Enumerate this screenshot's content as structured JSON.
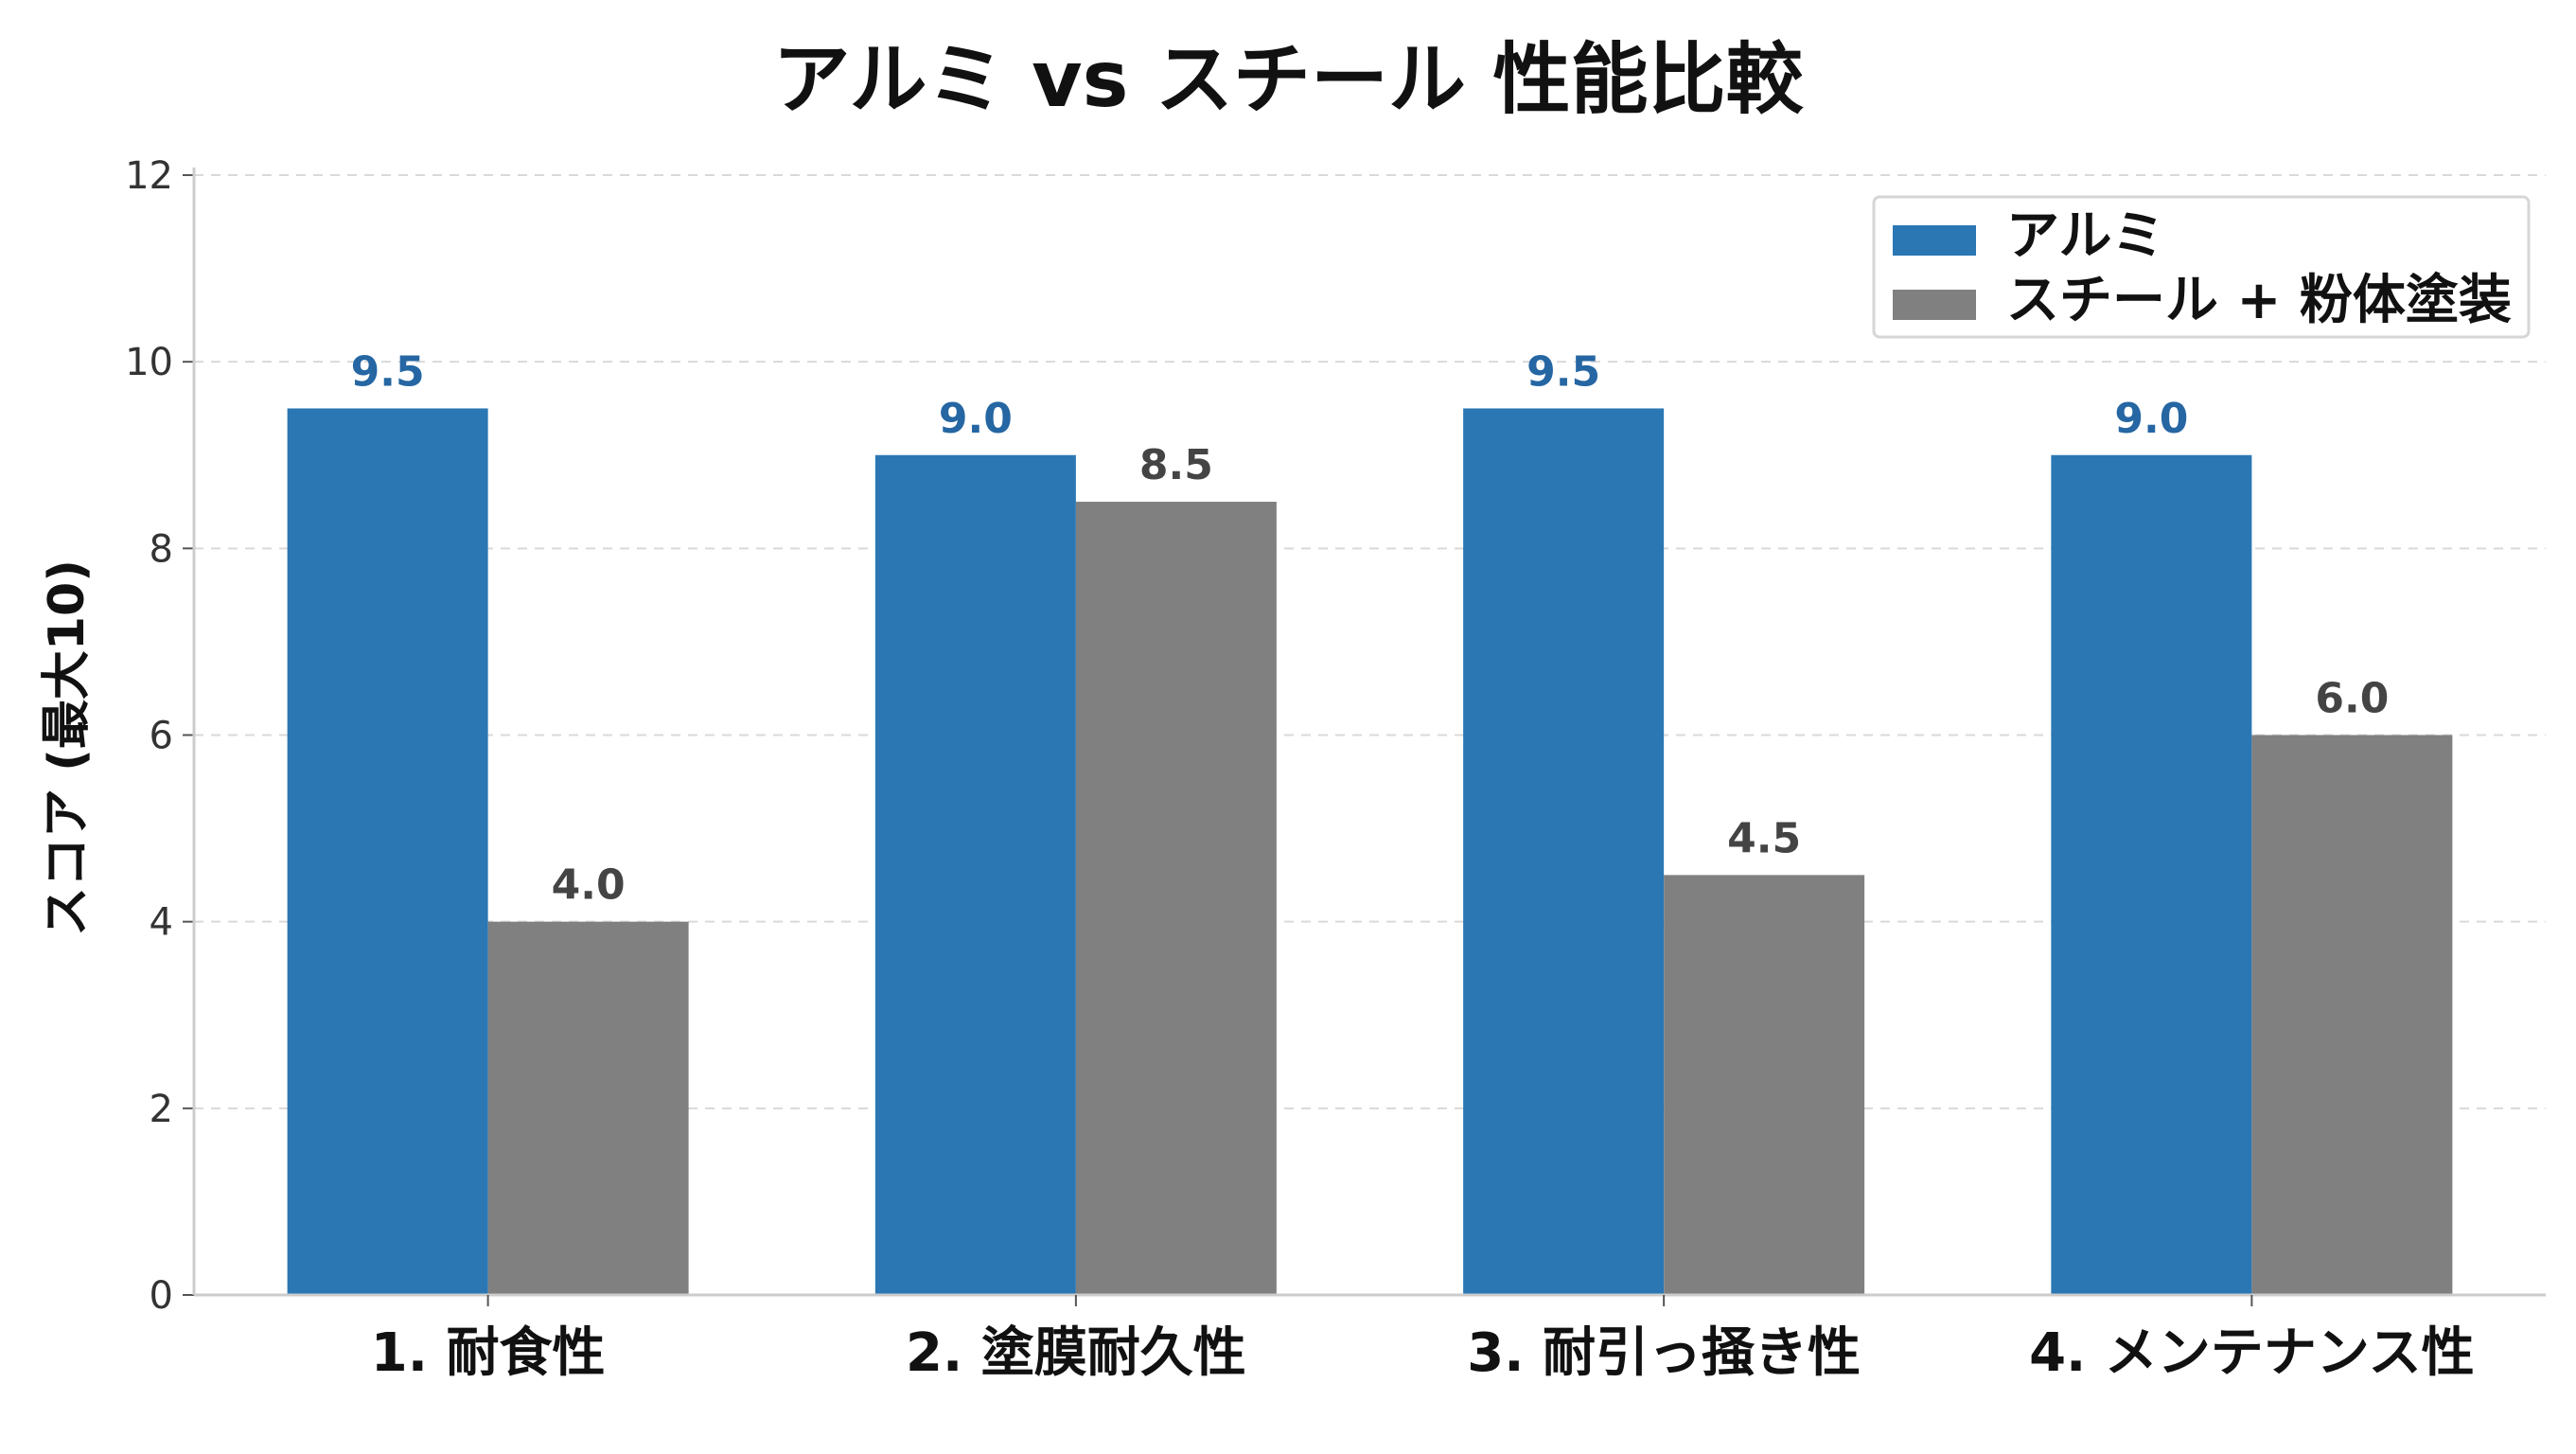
{
  "chart_data": {
    "type": "bar",
    "title": "アルミ vs スチール 性能比較",
    "xlabel": "",
    "ylabel": "スコア (最大10)",
    "ylim": [
      0,
      12
    ],
    "yticks": [
      0,
      2,
      4,
      6,
      8,
      10,
      12
    ],
    "grid": true,
    "legend_position": "top-right",
    "categories": [
      "1. 耐食性",
      "2. 塗膜耐久性",
      "3. 耐引っ掻き性",
      "4. メンテナンス性"
    ],
    "series": [
      {
        "name": "アルミ",
        "color": "#2a77b4",
        "label_color": "#2566a3",
        "values": [
          9.5,
          9.0,
          9.5,
          9.0
        ]
      },
      {
        "name": "スチール + 粉体塗装",
        "color": "#808080",
        "label_color": "#444444",
        "values": [
          4.0,
          8.5,
          4.5,
          6.0
        ]
      }
    ]
  }
}
